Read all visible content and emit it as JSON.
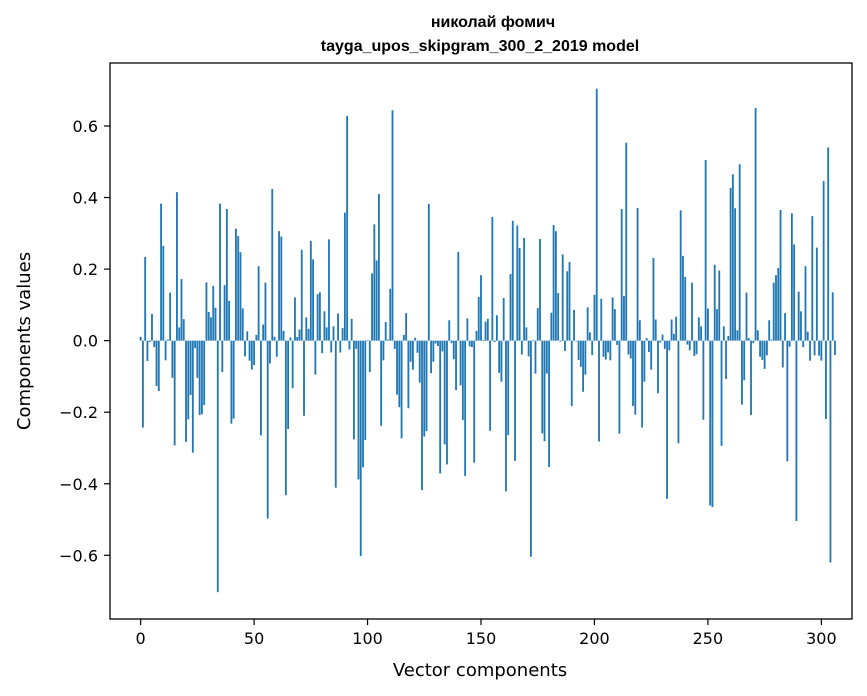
{
  "chart_data": {
    "type": "bar",
    "title": [
      "николай фомич",
      "tayga_upos_skipgram_300_2_2019 model"
    ],
    "xlabel": "Vector components",
    "ylabel": "Components values",
    "xlim": [
      -13.5,
      313.5
    ],
    "ylim": [
      -0.778,
      0.776
    ],
    "xticks": [
      0,
      50,
      100,
      150,
      200,
      250,
      300
    ],
    "xtick_labels": [
      "0",
      "50",
      "100",
      "150",
      "200",
      "250",
      "300"
    ],
    "yticks": [
      -0.6,
      -0.4,
      -0.2,
      0.0,
      0.2,
      0.4,
      0.6
    ],
    "ytick_labels": [
      "−0.6",
      "−0.4",
      "−0.2",
      "0.0",
      "0.2",
      "0.4",
      "0.6"
    ],
    "bar_color": "#1f77b4",
    "grid": false,
    "legend": "none",
    "values": [
      0.011,
      -0.243,
      0.234,
      -0.057,
      -0.004,
      0.075,
      -0.018,
      -0.127,
      -0.141,
      0.383,
      0.265,
      -0.055,
      0.003,
      0.134,
      -0.104,
      -0.293,
      0.415,
      0.037,
      0.172,
      0.06,
      -0.283,
      -0.22,
      -0.152,
      -0.313,
      -0.021,
      -0.104,
      -0.208,
      -0.206,
      -0.18,
      0.163,
      0.08,
      0.065,
      0.153,
      0.092,
      -0.703,
      0.383,
      -0.088,
      0.155,
      0.368,
      0.111,
      -0.232,
      -0.218,
      0.313,
      0.292,
      0.247,
      0.09,
      -0.044,
      0.026,
      -0.056,
      -0.081,
      -0.068,
      0.016,
      0.208,
      -0.265,
      0.045,
      0.162,
      -0.497,
      -0.064,
      0.424,
      0.011,
      -0.045,
      0.306,
      0.291,
      0.027,
      -0.432,
      -0.247,
      0.009,
      -0.133,
      0.121,
      0.01,
      0.031,
      0.254,
      -0.21,
      0.065,
      0.033,
      0.279,
      0.227,
      -0.095,
      0.13,
      0.135,
      -0.035,
      0.082,
      0.037,
      0.283,
      -0.033,
      0.04,
      -0.411,
      0.076,
      -0.033,
      0.035,
      0.358,
      0.628,
      -0.025,
      0.061,
      -0.276,
      -0.023,
      -0.388,
      -0.602,
      -0.354,
      -0.278,
      0.002,
      -0.088,
      0.188,
      0.325,
      0.224,
      0.41,
      -0.238,
      -0.055,
      0.052,
      0.003,
      0.145,
      0.644,
      -0.023,
      -0.151,
      -0.186,
      -0.273,
      0.016,
      0.077,
      -0.189,
      -0.059,
      -0.081,
      0.008,
      -0.034,
      -0.117,
      -0.418,
      -0.268,
      -0.253,
      0.382,
      -0.091,
      -0.059,
      -0.008,
      -0.015,
      -0.371,
      -0.03,
      -0.29,
      -0.346,
      0.057,
      -0.007,
      -0.052,
      -0.138,
      0.248,
      -0.125,
      -0.222,
      -0.378,
      0.062,
      -0.016,
      -0.018,
      -0.341,
      0.027,
      0.122,
      0.183,
      0.002,
      0.053,
      0.061,
      -0.252,
      0.346,
      -0.004,
      0.071,
      -0.09,
      -0.115,
      0.119,
      -0.421,
      -0.264,
      0.186,
      0.335,
      -0.336,
      0.322,
      0.259,
      -0.039,
      0.287,
      0.037,
      -0.044,
      -0.604,
      0.002,
      -0.092,
      0.091,
      0.284,
      -0.259,
      -0.281,
      -0.092,
      -0.353,
      0.078,
      0.323,
      0.306,
      0.133,
      -0.003,
      0.241,
      -0.029,
      0.194,
      0.22,
      -0.183,
      0.086,
      -0.002,
      -0.054,
      -0.073,
      -0.143,
      -0.095,
      0.093,
      0.023,
      -0.04,
      0.128,
      0.704,
      -0.282,
      0.117,
      -0.045,
      -0.053,
      -0.033,
      -0.055,
      0.121,
      0.088,
      -0.012,
      -0.26,
      0.368,
      0.125,
      0.553,
      -0.039,
      -0.05,
      -0.183,
      -0.207,
      0.371,
      0.057,
      -0.243,
      -0.115,
      0.007,
      -0.032,
      -0.081,
      0.231,
      0.059,
      -0.147,
      -0.005,
      0.017,
      -0.023,
      -0.442,
      -0.027,
      0.059,
      0.019,
      0.067,
      -0.287,
      0.364,
      0.237,
      0.178,
      -0.011,
      -0.027,
      0.162,
      -0.043,
      -0.038,
      0.065,
      0.04,
      -0.221,
      0.505,
      0.09,
      -0.461,
      -0.465,
      0.212,
      0.088,
      0.196,
      -0.294,
      0.04,
      -0.107,
      0.013,
      0.427,
      0.465,
      0.37,
      0.029,
      0.493,
      -0.179,
      -0.111,
      0.134,
      0.007,
      -0.208,
      -0.007,
      0.65,
      0.029,
      -0.045,
      -0.054,
      -0.079,
      -0.041,
      0.057,
      0.003,
      0.162,
      0.183,
      0.203,
      0.365,
      -0.075,
      0.077,
      -0.337,
      -0.017,
      0.356,
      0.269,
      -0.504,
      0.137,
      0.082,
      -0.018,
      0.208,
      0.025,
      -0.056,
      0.348,
      -0.041,
      0.26,
      -0.042,
      -0.056,
      0.446,
      -0.219,
      0.54,
      -0.62,
      0.135,
      -0.04
    ]
  }
}
